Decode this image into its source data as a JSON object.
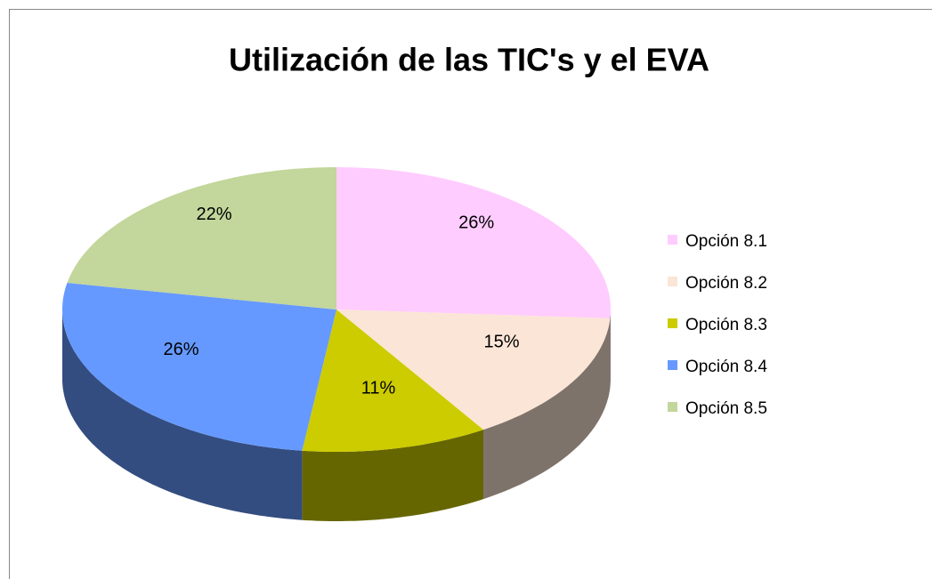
{
  "chart_data": {
    "type": "pie",
    "title": "Utilización de las TIC's y el EVA",
    "categories": [
      "Opción 8.1",
      "Opción 8.2",
      "Opción 8.3",
      "Opción 8.4",
      "Opción 8.5"
    ],
    "values": [
      26,
      15,
      11,
      26,
      22
    ],
    "value_labels": [
      "26%",
      "15%",
      "11%",
      "26%",
      "22%"
    ],
    "colors": [
      "#ffccff",
      "#fbe5d6",
      "#cccc00",
      "#6699ff",
      "#c3d69b"
    ],
    "legend": "right"
  }
}
